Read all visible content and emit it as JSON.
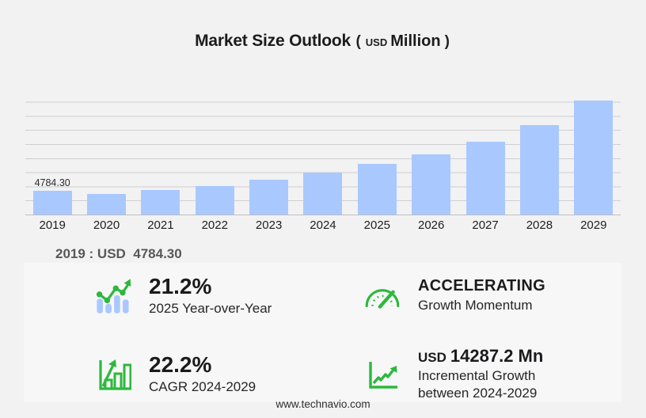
{
  "title": {
    "main": "Market Size Outlook",
    "paren_open": "(",
    "currency": "USD",
    "unit": "Million",
    "paren_close": ")"
  },
  "chart_data": {
    "type": "bar",
    "title": "Market Size Outlook (USD Million)",
    "categories": [
      "2019",
      "2020",
      "2021",
      "2022",
      "2023",
      "2024",
      "2025",
      "2026",
      "2027",
      "2028",
      "2029"
    ],
    "values": [
      4784.3,
      4090,
      4905,
      5620,
      6840,
      8275,
      10030,
      11920,
      14440,
      17750,
      22560
    ],
    "data_label": {
      "index": 0,
      "text": "4784.30"
    },
    "ylim": [
      0,
      24500
    ],
    "grid": true,
    "legend": "none",
    "bar_color": "#a9c8fe"
  },
  "annotation": {
    "text": "2019 : USD  4784.30"
  },
  "stats": [
    {
      "icon": "trend-bars-icon",
      "value": "21.2%",
      "label": "2025 Year-over-Year"
    },
    {
      "icon": "speedometer-icon",
      "value": "ACCELERATING",
      "label": "Growth Momentum"
    },
    {
      "icon": "growth-bars-icon",
      "value": "22.2%",
      "label": "CAGR 2024-2029"
    },
    {
      "icon": "line-chart-icon",
      "value_prefix": "USD",
      "value": "14287.2 Mn",
      "label": "Incremental Growth",
      "label2": "between 2024-2029"
    }
  ],
  "footer": {
    "url": "www.technavio.com"
  },
  "colors": {
    "background": "#f2f2f3",
    "panel": "#f7f7f8",
    "bar": "#a9c8fe",
    "grid": "#cfcfd2",
    "accent_green": "#2db83d",
    "text_dark": "#1b1b1d"
  }
}
